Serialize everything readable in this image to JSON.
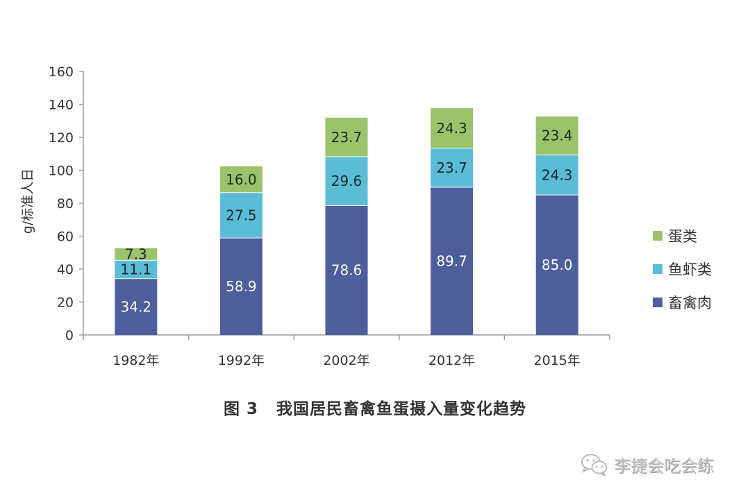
{
  "chart_data": {
    "type": "bar",
    "stacked": true,
    "title": "",
    "xlabel": "",
    "ylabel": "g/标准人日",
    "ylim": [
      0,
      160
    ],
    "yticks": [
      0,
      20,
      40,
      60,
      80,
      100,
      120,
      140,
      160
    ],
    "grid": false,
    "legend_position": "right",
    "categories": [
      "1982年",
      "1992年",
      "2002年",
      "2012年",
      "2015年"
    ],
    "series": [
      {
        "name": "畜禽肉",
        "color": "#4E5E9C",
        "label_color": "#ffffff",
        "values": [
          34.2,
          58.9,
          78.6,
          89.7,
          85.0
        ]
      },
      {
        "name": "鱼虾类",
        "color": "#5BBCD6",
        "label_color": "#1a2a33",
        "values": [
          11.1,
          27.5,
          29.6,
          23.7,
          24.3
        ]
      },
      {
        "name": "蛋类",
        "color": "#9BC36C",
        "label_color": "#1a2a1a",
        "values": [
          7.3,
          16.0,
          23.7,
          24.3,
          23.4
        ]
      }
    ],
    "value_labels": [
      [
        "34.2",
        "58.9",
        "78.6",
        "89.7",
        "85.0"
      ],
      [
        "11.1",
        "27.5",
        "29.6",
        "23.7",
        "24.3"
      ],
      [
        "7.3",
        "16.0",
        "23.7",
        "24.3",
        "23.4"
      ]
    ]
  },
  "legend": {
    "items": [
      {
        "label": "蛋类",
        "color": "#9BC36C"
      },
      {
        "label": "鱼虾类",
        "color": "#5BBCD6"
      },
      {
        "label": "畜禽肉",
        "color": "#4E5E9C"
      }
    ]
  },
  "caption": {
    "figure_number": "图 3",
    "text": "我国居民畜禽鱼蛋摄入量变化趋势"
  },
  "watermark": {
    "icon": "wechat-icon",
    "text": "李捷会吃会练"
  }
}
